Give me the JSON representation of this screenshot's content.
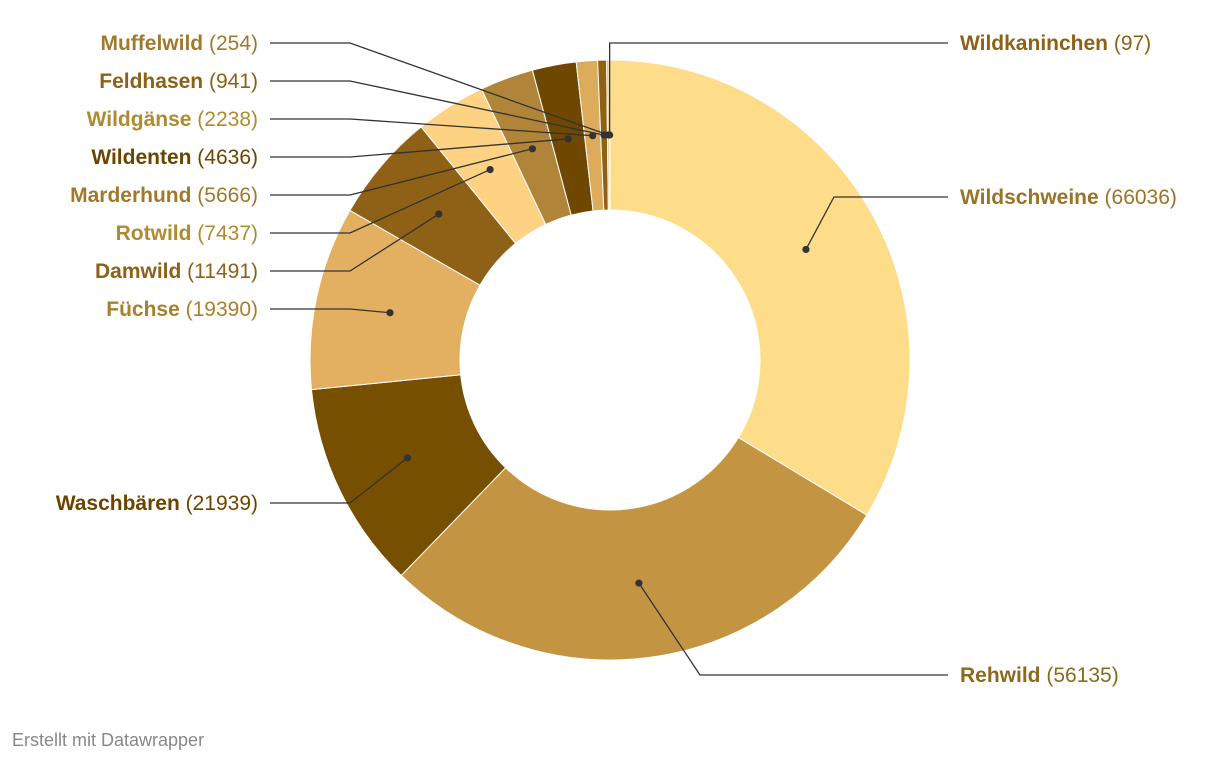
{
  "chart_data": {
    "type": "pie",
    "variant": "donut",
    "slices": [
      {
        "label": "Wildschweine",
        "value": 66036,
        "color": "#fddd8a",
        "textColor": "#9a7426",
        "side": "right"
      },
      {
        "label": "Rehwild",
        "value": 56135,
        "color": "#c39543",
        "textColor": "#8c6a1c",
        "side": "right"
      },
      {
        "label": "Waschbären",
        "value": 21939,
        "color": "#774f00",
        "textColor": "#6b4500",
        "side": "left"
      },
      {
        "label": "Füchse",
        "value": 19390,
        "color": "#e2b060",
        "textColor": "#a8802a",
        "side": "left"
      },
      {
        "label": "Damwild",
        "value": 11491,
        "color": "#8e6116",
        "textColor": "#8e6116",
        "side": "left"
      },
      {
        "label": "Rotwild",
        "value": 7437,
        "color": "#fdd282",
        "textColor": "#b08a30",
        "side": "left"
      },
      {
        "label": "Marderhund",
        "value": 5666,
        "color": "#b0853a",
        "textColor": "#a07a2c",
        "side": "left"
      },
      {
        "label": "Wildenten",
        "value": 4636,
        "color": "#6f4700",
        "textColor": "#6b4500",
        "side": "left"
      },
      {
        "label": "Wildgänse",
        "value": 2238,
        "color": "#dcac5c",
        "textColor": "#b08a30",
        "side": "left"
      },
      {
        "label": "Feldhasen",
        "value": 941,
        "color": "#8f6112",
        "textColor": "#8e6116",
        "side": "left"
      },
      {
        "label": "Muffelwild",
        "value": 254,
        "color": "#e6b868",
        "textColor": "#a07a2c",
        "side": "left"
      },
      {
        "label": "Wildkaninchen",
        "value": 97,
        "color": "#7a5208",
        "textColor": "#8e6116",
        "side": "right"
      }
    ]
  },
  "credit": "Erstellt mit Datawrapper"
}
